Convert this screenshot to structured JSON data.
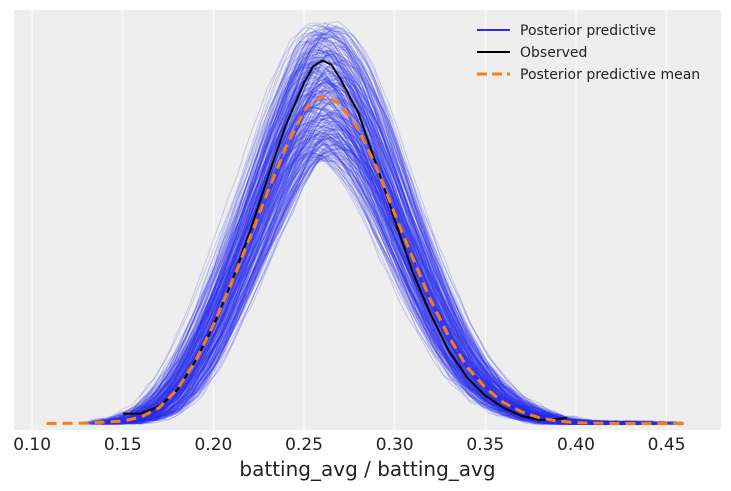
{
  "chart_data": {
    "type": "line",
    "title": "",
    "xlabel": "batting_avg / batting_avg",
    "ylabel": "",
    "xlim": [
      0.09,
      0.48
    ],
    "ylim": [
      -0.01,
      1.03
    ],
    "x_ticks": [
      "0.10",
      "0.15",
      "0.20",
      "0.25",
      "0.30",
      "0.35",
      "0.40",
      "0.45"
    ],
    "y_ticks_shown": false,
    "grid": true,
    "legend_position": "top-right",
    "colors": {
      "background": "#eeeeee",
      "grid": "#ffffff",
      "posterior_predictive": "#2a2eec",
      "observed": "#000000",
      "posterior_predictive_mean": "#fa7c17"
    },
    "series": [
      {
        "name": "Posterior predictive",
        "style": "many thin translucent draws",
        "draws_shown": 300,
        "x_range": [
          0.13,
          0.46
        ],
        "peak_x": 0.26,
        "peak_height_range": [
          0.66,
          1.0
        ]
      },
      {
        "name": "Observed",
        "style": "solid",
        "points": [
          [
            0.15,
            0.03
          ],
          [
            0.16,
            0.031
          ],
          [
            0.17,
            0.048
          ],
          [
            0.18,
            0.088
          ],
          [
            0.19,
            0.16
          ],
          [
            0.2,
            0.248
          ],
          [
            0.21,
            0.355
          ],
          [
            0.22,
            0.48
          ],
          [
            0.23,
            0.615
          ],
          [
            0.24,
            0.745
          ],
          [
            0.25,
            0.85
          ],
          [
            0.255,
            0.89
          ],
          [
            0.26,
            0.905
          ],
          [
            0.265,
            0.895
          ],
          [
            0.27,
            0.86
          ],
          [
            0.28,
            0.775
          ],
          [
            0.29,
            0.645
          ],
          [
            0.3,
            0.51
          ],
          [
            0.31,
            0.38
          ],
          [
            0.32,
            0.275
          ],
          [
            0.33,
            0.185
          ],
          [
            0.34,
            0.12
          ],
          [
            0.35,
            0.075
          ],
          [
            0.36,
            0.045
          ],
          [
            0.37,
            0.025
          ],
          [
            0.38,
            0.015
          ],
          [
            0.385,
            0.015
          ],
          [
            0.395,
            0.02
          ]
        ]
      },
      {
        "name": "Posterior predictive mean",
        "style": "dashed",
        "points": [
          [
            0.108,
            0.006
          ],
          [
            0.13,
            0.007
          ],
          [
            0.15,
            0.012
          ],
          [
            0.16,
            0.022
          ],
          [
            0.17,
            0.045
          ],
          [
            0.18,
            0.09
          ],
          [
            0.19,
            0.16
          ],
          [
            0.2,
            0.25
          ],
          [
            0.21,
            0.355
          ],
          [
            0.22,
            0.465
          ],
          [
            0.23,
            0.58
          ],
          [
            0.24,
            0.69
          ],
          [
            0.25,
            0.78
          ],
          [
            0.255,
            0.805
          ],
          [
            0.26,
            0.815
          ],
          [
            0.265,
            0.81
          ],
          [
            0.27,
            0.795
          ],
          [
            0.28,
            0.735
          ],
          [
            0.29,
            0.64
          ],
          [
            0.3,
            0.525
          ],
          [
            0.31,
            0.415
          ],
          [
            0.32,
            0.31
          ],
          [
            0.33,
            0.22
          ],
          [
            0.34,
            0.145
          ],
          [
            0.35,
            0.095
          ],
          [
            0.36,
            0.058
          ],
          [
            0.37,
            0.035
          ],
          [
            0.38,
            0.02
          ],
          [
            0.39,
            0.012
          ],
          [
            0.4,
            0.008
          ],
          [
            0.42,
            0.006
          ],
          [
            0.46,
            0.006
          ]
        ]
      }
    ]
  }
}
